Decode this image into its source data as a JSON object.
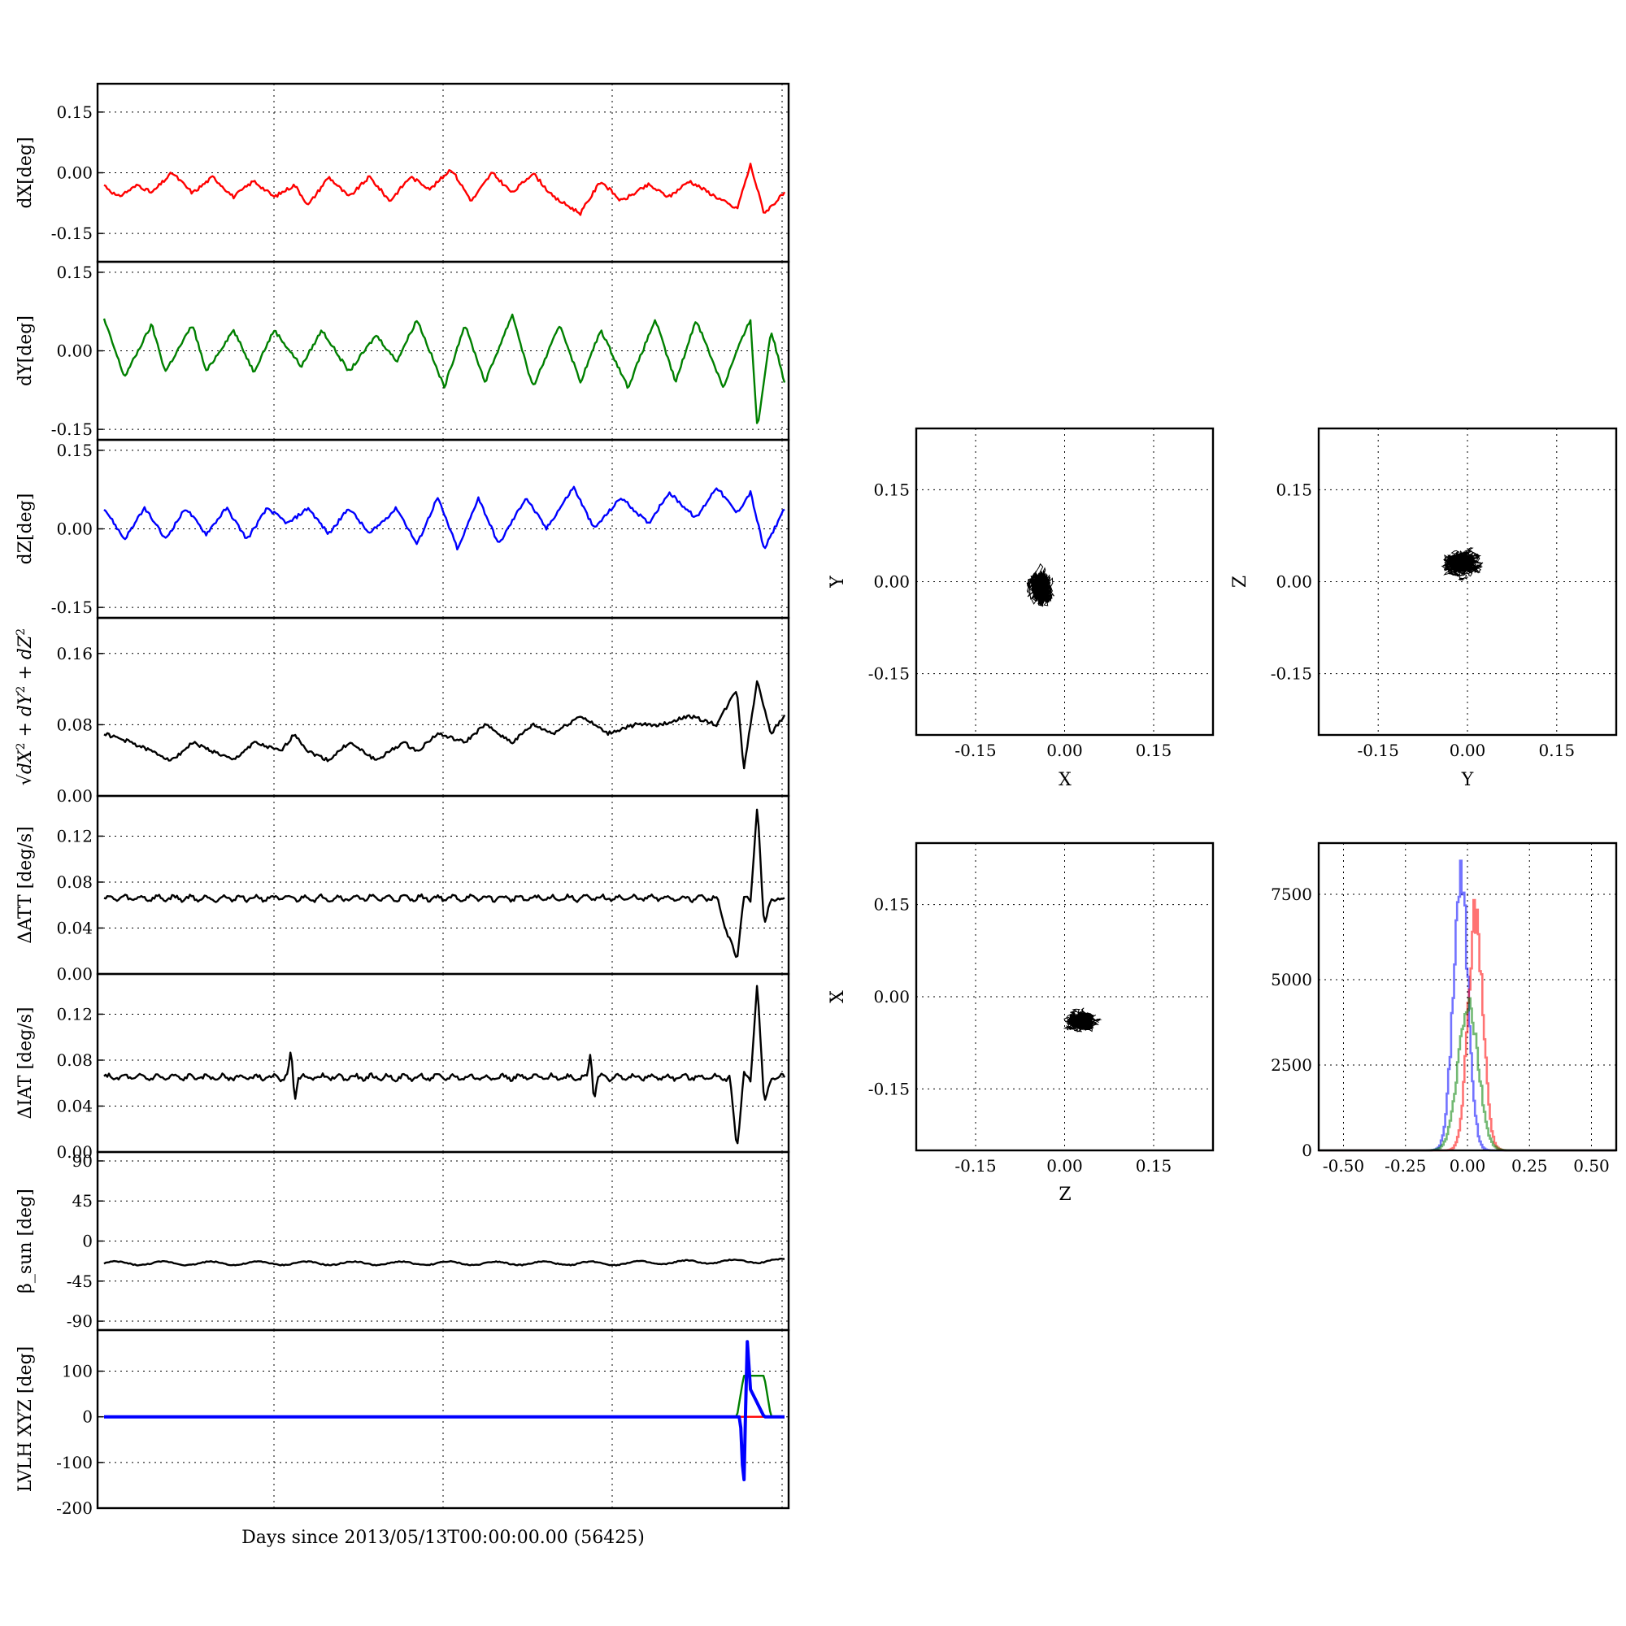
{
  "figure": {
    "xlabel": "Days since 2013/05/13T00:00:00.00 (56425)"
  },
  "colors": {
    "dx": "#ff0000",
    "dy": "#008000",
    "dz": "#0000ff",
    "black": "#000000",
    "grid": "#000000"
  },
  "chart_data": [
    {
      "id": "dx",
      "type": "line",
      "ylabel": "dX[deg]",
      "ylim": [
        -0.22,
        0.22
      ],
      "yticks": [
        "0.15",
        "0.00",
        "-0.15"
      ],
      "yticks_values": [
        0.15,
        0.0,
        -0.15
      ],
      "grid": true,
      "series": [
        {
          "color": "#ff0000",
          "points": [
            [
              0.0,
              -0.03
            ],
            [
              0.02,
              -0.06
            ],
            [
              0.05,
              -0.03
            ],
            [
              0.07,
              -0.05
            ],
            [
              0.1,
              0.0
            ],
            [
              0.13,
              -0.05
            ],
            [
              0.16,
              -0.01
            ],
            [
              0.19,
              -0.06
            ],
            [
              0.22,
              -0.02
            ],
            [
              0.25,
              -0.06
            ],
            [
              0.28,
              -0.03
            ],
            [
              0.3,
              -0.08
            ],
            [
              0.33,
              -0.01
            ],
            [
              0.36,
              -0.06
            ],
            [
              0.39,
              -0.01
            ],
            [
              0.42,
              -0.07
            ],
            [
              0.45,
              -0.01
            ],
            [
              0.48,
              -0.04
            ],
            [
              0.51,
              0.01
            ],
            [
              0.54,
              -0.07
            ],
            [
              0.57,
              0.0
            ],
            [
              0.6,
              -0.05
            ],
            [
              0.63,
              0.0
            ],
            [
              0.66,
              -0.06
            ],
            [
              0.7,
              -0.1
            ],
            [
              0.73,
              -0.02
            ],
            [
              0.76,
              -0.07
            ],
            [
              0.8,
              -0.03
            ],
            [
              0.83,
              -0.06
            ],
            [
              0.86,
              -0.02
            ],
            [
              0.89,
              -0.05
            ],
            [
              0.93,
              -0.09
            ],
            [
              0.95,
              0.02
            ],
            [
              0.97,
              -0.1
            ],
            [
              1.0,
              -0.05
            ]
          ]
        }
      ]
    },
    {
      "id": "dy",
      "type": "line",
      "ylabel": "dY[deg]",
      "ylim": [
        -0.17,
        0.17
      ],
      "yticks": [
        "0.15",
        "0.00",
        "-0.15"
      ],
      "yticks_values": [
        0.15,
        0.0,
        -0.15
      ],
      "grid": true,
      "series": [
        {
          "color": "#008000",
          "points": [
            [
              0.0,
              0.06
            ],
            [
              0.03,
              -0.05
            ],
            [
              0.07,
              0.05
            ],
            [
              0.09,
              -0.04
            ],
            [
              0.13,
              0.05
            ],
            [
              0.15,
              -0.04
            ],
            [
              0.19,
              0.04
            ],
            [
              0.22,
              -0.04
            ],
            [
              0.25,
              0.04
            ],
            [
              0.29,
              -0.03
            ],
            [
              0.32,
              0.04
            ],
            [
              0.36,
              -0.04
            ],
            [
              0.4,
              0.03
            ],
            [
              0.43,
              -0.02
            ],
            [
              0.46,
              0.06
            ],
            [
              0.5,
              -0.07
            ],
            [
              0.53,
              0.05
            ],
            [
              0.56,
              -0.06
            ],
            [
              0.6,
              0.07
            ],
            [
              0.63,
              -0.07
            ],
            [
              0.67,
              0.05
            ],
            [
              0.7,
              -0.06
            ],
            [
              0.73,
              0.04
            ],
            [
              0.77,
              -0.07
            ],
            [
              0.81,
              0.06
            ],
            [
              0.84,
              -0.06
            ],
            [
              0.87,
              0.06
            ],
            [
              0.91,
              -0.07
            ],
            [
              0.93,
              0.0
            ],
            [
              0.95,
              0.06
            ],
            [
              0.96,
              -0.15
            ],
            [
              0.98,
              0.04
            ],
            [
              1.0,
              -0.06
            ]
          ]
        }
      ]
    },
    {
      "id": "dz",
      "type": "line",
      "ylabel": "dZ[deg]",
      "ylim": [
        -0.17,
        0.17
      ],
      "yticks": [
        "0.15",
        "0.00",
        "-0.15"
      ],
      "yticks_values": [
        0.15,
        0.0,
        -0.15
      ],
      "grid": true,
      "series": [
        {
          "color": "#0000ff",
          "points": [
            [
              0.0,
              0.04
            ],
            [
              0.03,
              -0.02
            ],
            [
              0.06,
              0.04
            ],
            [
              0.09,
              -0.02
            ],
            [
              0.12,
              0.04
            ],
            [
              0.15,
              -0.01
            ],
            [
              0.18,
              0.04
            ],
            [
              0.21,
              -0.02
            ],
            [
              0.24,
              0.04
            ],
            [
              0.27,
              0.01
            ],
            [
              0.3,
              0.04
            ],
            [
              0.33,
              -0.01
            ],
            [
              0.36,
              0.04
            ],
            [
              0.39,
              -0.01
            ],
            [
              0.43,
              0.04
            ],
            [
              0.46,
              -0.03
            ],
            [
              0.49,
              0.06
            ],
            [
              0.52,
              -0.04
            ],
            [
              0.55,
              0.06
            ],
            [
              0.58,
              -0.03
            ],
            [
              0.62,
              0.06
            ],
            [
              0.65,
              0.0
            ],
            [
              0.69,
              0.08
            ],
            [
              0.72,
              0.0
            ],
            [
              0.76,
              0.06
            ],
            [
              0.8,
              0.01
            ],
            [
              0.83,
              0.07
            ],
            [
              0.87,
              0.02
            ],
            [
              0.9,
              0.08
            ],
            [
              0.93,
              0.03
            ],
            [
              0.95,
              0.07
            ],
            [
              0.97,
              -0.04
            ],
            [
              1.0,
              0.04
            ]
          ]
        }
      ]
    },
    {
      "id": "rms",
      "type": "line",
      "ylabel_parts": [
        "dX",
        "2",
        " + dY",
        "2",
        " + dZ",
        "2"
      ],
      "ylim": [
        0,
        0.2
      ],
      "yticks": [
        "0.16",
        "0.08",
        "0.00"
      ],
      "yticks_values": [
        0.16,
        0.08,
        0.0
      ],
      "grid": true,
      "series": [
        {
          "color": "#000000",
          "points": [
            [
              0.0,
              0.07
            ],
            [
              0.04,
              0.06
            ],
            [
              0.07,
              0.05
            ],
            [
              0.1,
              0.04
            ],
            [
              0.13,
              0.06
            ],
            [
              0.16,
              0.05
            ],
            [
              0.19,
              0.04
            ],
            [
              0.22,
              0.06
            ],
            [
              0.26,
              0.05
            ],
            [
              0.28,
              0.07
            ],
            [
              0.3,
              0.05
            ],
            [
              0.33,
              0.04
            ],
            [
              0.36,
              0.06
            ],
            [
              0.4,
              0.04
            ],
            [
              0.44,
              0.06
            ],
            [
              0.46,
              0.05
            ],
            [
              0.49,
              0.07
            ],
            [
              0.53,
              0.06
            ],
            [
              0.56,
              0.08
            ],
            [
              0.6,
              0.06
            ],
            [
              0.63,
              0.08
            ],
            [
              0.66,
              0.07
            ],
            [
              0.7,
              0.09
            ],
            [
              0.74,
              0.07
            ],
            [
              0.78,
              0.08
            ],
            [
              0.82,
              0.08
            ],
            [
              0.86,
              0.09
            ],
            [
              0.9,
              0.08
            ],
            [
              0.93,
              0.12
            ],
            [
              0.94,
              0.03
            ],
            [
              0.96,
              0.13
            ],
            [
              0.98,
              0.07
            ],
            [
              1.0,
              0.09
            ]
          ]
        }
      ]
    },
    {
      "id": "datt",
      "type": "line",
      "ylabel": "ΔATT [deg/s]",
      "ylim": [
        0,
        0.155
      ],
      "yticks": [
        "0.12",
        "0.08",
        "0.04",
        "0.00"
      ],
      "yticks_values": [
        0.12,
        0.08,
        0.04,
        0.0
      ],
      "grid": true,
      "series": [
        {
          "color": "#000000",
          "points": [
            [
              0.0,
              0.066
            ],
            [
              0.1,
              0.066
            ],
            [
              0.2,
              0.066
            ],
            [
              0.3,
              0.066
            ],
            [
              0.4,
              0.066
            ],
            [
              0.5,
              0.066
            ],
            [
              0.6,
              0.066
            ],
            [
              0.7,
              0.066
            ],
            [
              0.8,
              0.066
            ],
            [
              0.9,
              0.066
            ],
            [
              0.93,
              0.01
            ],
            [
              0.94,
              0.07
            ],
            [
              0.95,
              0.06
            ],
            [
              0.96,
              0.15
            ],
            [
              0.97,
              0.04
            ],
            [
              0.98,
              0.065
            ],
            [
              1.0,
              0.065
            ]
          ]
        }
      ]
    },
    {
      "id": "diat",
      "type": "line",
      "ylabel": "ΔIAT [deg/s]",
      "ylim": [
        0,
        0.155
      ],
      "yticks": [
        "0.12",
        "0.08",
        "0.04",
        "0.00"
      ],
      "yticks_values": [
        0.12,
        0.08,
        0.04,
        0.0
      ],
      "grid": true,
      "series": [
        {
          "color": "#000000",
          "points": [
            [
              0.0,
              0.065
            ],
            [
              0.27,
              0.065
            ],
            [
              0.275,
              0.09
            ],
            [
              0.28,
              0.045
            ],
            [
              0.285,
              0.065
            ],
            [
              0.71,
              0.065
            ],
            [
              0.715,
              0.09
            ],
            [
              0.72,
              0.045
            ],
            [
              0.725,
              0.065
            ],
            [
              0.92,
              0.065
            ],
            [
              0.93,
              0.0
            ],
            [
              0.94,
              0.07
            ],
            [
              0.95,
              0.06
            ],
            [
              0.96,
              0.15
            ],
            [
              0.97,
              0.04
            ],
            [
              0.98,
              0.065
            ],
            [
              1.0,
              0.065
            ]
          ]
        }
      ]
    },
    {
      "id": "beta",
      "type": "line",
      "ylabel": "β_sun [deg]",
      "ylim": [
        -100,
        100
      ],
      "yticks": [
        "90",
        "45",
        "0",
        "-45",
        "-90"
      ],
      "yticks_values": [
        90,
        45,
        0,
        -45,
        -90
      ],
      "grid": true,
      "series": [
        {
          "color": "#000000",
          "points": [
            [
              0.0,
              -25
            ],
            [
              0.25,
              -25
            ],
            [
              0.5,
              -25
            ],
            [
              0.75,
              -25
            ],
            [
              1.0,
              -22
            ]
          ]
        }
      ]
    },
    {
      "id": "lvlh",
      "type": "line",
      "ylabel": "LVLH XYZ [deg]",
      "ylim": [
        -200,
        190
      ],
      "yticks": [
        "100",
        "0",
        "-100",
        "-200"
      ],
      "yticks_values": [
        100,
        0,
        -100,
        -200
      ],
      "grid": true,
      "series": [
        {
          "color": "#ff0000",
          "points": [
            [
              0.0,
              0
            ],
            [
              1.0,
              0
            ]
          ]
        },
        {
          "color": "#008000",
          "points": [
            [
              0.0,
              0
            ],
            [
              0.93,
              0
            ],
            [
              0.94,
              90
            ],
            [
              0.97,
              90
            ],
            [
              0.98,
              0
            ],
            [
              1.0,
              0
            ]
          ]
        },
        {
          "color": "#0000ff",
          "points": [
            [
              0.0,
              0
            ],
            [
              0.935,
              0
            ],
            [
              0.94,
              -170
            ],
            [
              0.945,
              170
            ],
            [
              0.95,
              60
            ],
            [
              0.96,
              30
            ],
            [
              0.97,
              0
            ],
            [
              1.0,
              0
            ]
          ]
        }
      ]
    },
    {
      "id": "xy",
      "type": "scatter",
      "xlabel": "X",
      "ylabel": "Y",
      "xlim": [
        -0.25,
        0.25
      ],
      "ylim": [
        -0.25,
        0.25
      ],
      "ticks": [
        "-0.15",
        "0.00",
        "0.15"
      ],
      "tick_values": [
        -0.15,
        0.0,
        0.15
      ],
      "grid": true,
      "cloud": {
        "center": [
          -0.04,
          -0.01
        ],
        "spread": [
          0.03,
          0.045
        ]
      }
    },
    {
      "id": "yz",
      "type": "scatter",
      "xlabel": "Y",
      "ylabel": "Z",
      "xlim": [
        -0.25,
        0.25
      ],
      "ylim": [
        -0.25,
        0.25
      ],
      "ticks": [
        "-0.15",
        "0.00",
        "0.15"
      ],
      "tick_values": [
        -0.15,
        0.0,
        0.15
      ],
      "grid": true,
      "cloud": {
        "center": [
          -0.01,
          0.03
        ],
        "spread": [
          0.05,
          0.03
        ]
      }
    },
    {
      "id": "zx",
      "type": "scatter",
      "xlabel": "Z",
      "ylabel": "X",
      "xlim": [
        -0.25,
        0.25
      ],
      "ylim": [
        -0.25,
        0.25
      ],
      "ticks": [
        "-0.15",
        "0.00",
        "0.15"
      ],
      "tick_values": [
        -0.15,
        0.0,
        0.15
      ],
      "grid": true,
      "cloud": {
        "center": [
          0.03,
          -0.04
        ],
        "spread": [
          0.04,
          0.025
        ]
      }
    },
    {
      "id": "hist",
      "type": "histogram",
      "xlim": [
        -0.6,
        0.6
      ],
      "ylim": [
        0,
        9000
      ],
      "xticks": [
        "-0.50",
        "-0.25",
        "0.00",
        "0.25",
        "0.50"
      ],
      "xticks_values": [
        -0.5,
        -0.25,
        0.0,
        0.25,
        0.5
      ],
      "yticks": [
        "7500",
        "5000",
        "2500",
        "0"
      ],
      "yticks_values": [
        7500,
        5000,
        2500,
        0
      ],
      "grid": true,
      "series": [
        {
          "color": "#0000ff",
          "center": -0.03,
          "width": 0.03,
          "peak": 8700
        },
        {
          "color": "#ff0000",
          "center": 0.03,
          "width": 0.03,
          "peak": 7500
        },
        {
          "color": "#008000",
          "center": 0.0,
          "width": 0.04,
          "peak": 4700
        }
      ]
    }
  ]
}
